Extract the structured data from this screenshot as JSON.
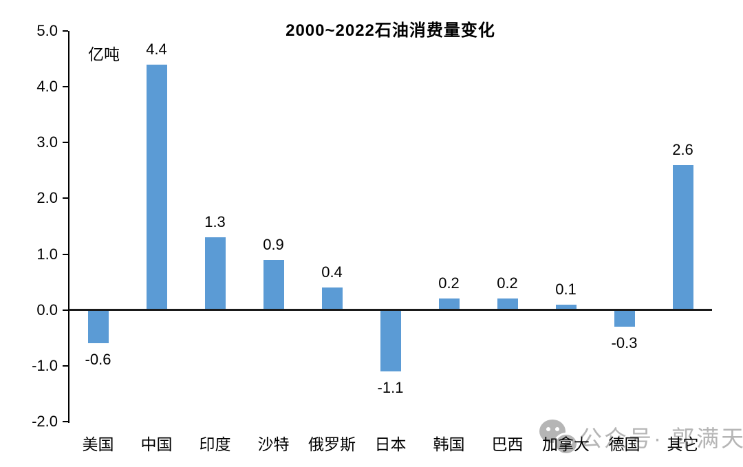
{
  "page": {
    "background": "#ffffff"
  },
  "chart_data": {
    "type": "bar",
    "title": "2000~2022石油消费量变化",
    "unit_label": "亿吨",
    "categories": [
      "美国",
      "中国",
      "印度",
      "沙特",
      "俄罗斯",
      "日本",
      "韩国",
      "巴西",
      "加拿大",
      "德国",
      "其它"
    ],
    "values": [
      -0.6,
      4.4,
      1.3,
      0.9,
      0.4,
      -1.1,
      0.2,
      0.2,
      0.1,
      -0.3,
      2.6
    ],
    "value_labels": [
      "-0.6",
      "4.4",
      "1.3",
      "0.9",
      "0.4",
      "-1.1",
      "0.2",
      "0.2",
      "0.1",
      "-0.3",
      "2.6"
    ],
    "xlabel": "",
    "ylabel": "亿吨",
    "ylim": [
      -2.0,
      5.0
    ],
    "yticks": [
      "5.0",
      "4.0",
      "3.0",
      "2.0",
      "1.0",
      "0.0",
      "-1.0",
      "-2.0"
    ],
    "grid": false,
    "legend": "none",
    "bar_color": "#5B9BD5",
    "axis_color": "#000000"
  },
  "watermark": {
    "icon": "wechat-icon",
    "text": "公众号· 郭满天",
    "color": "#b5b5b5"
  }
}
